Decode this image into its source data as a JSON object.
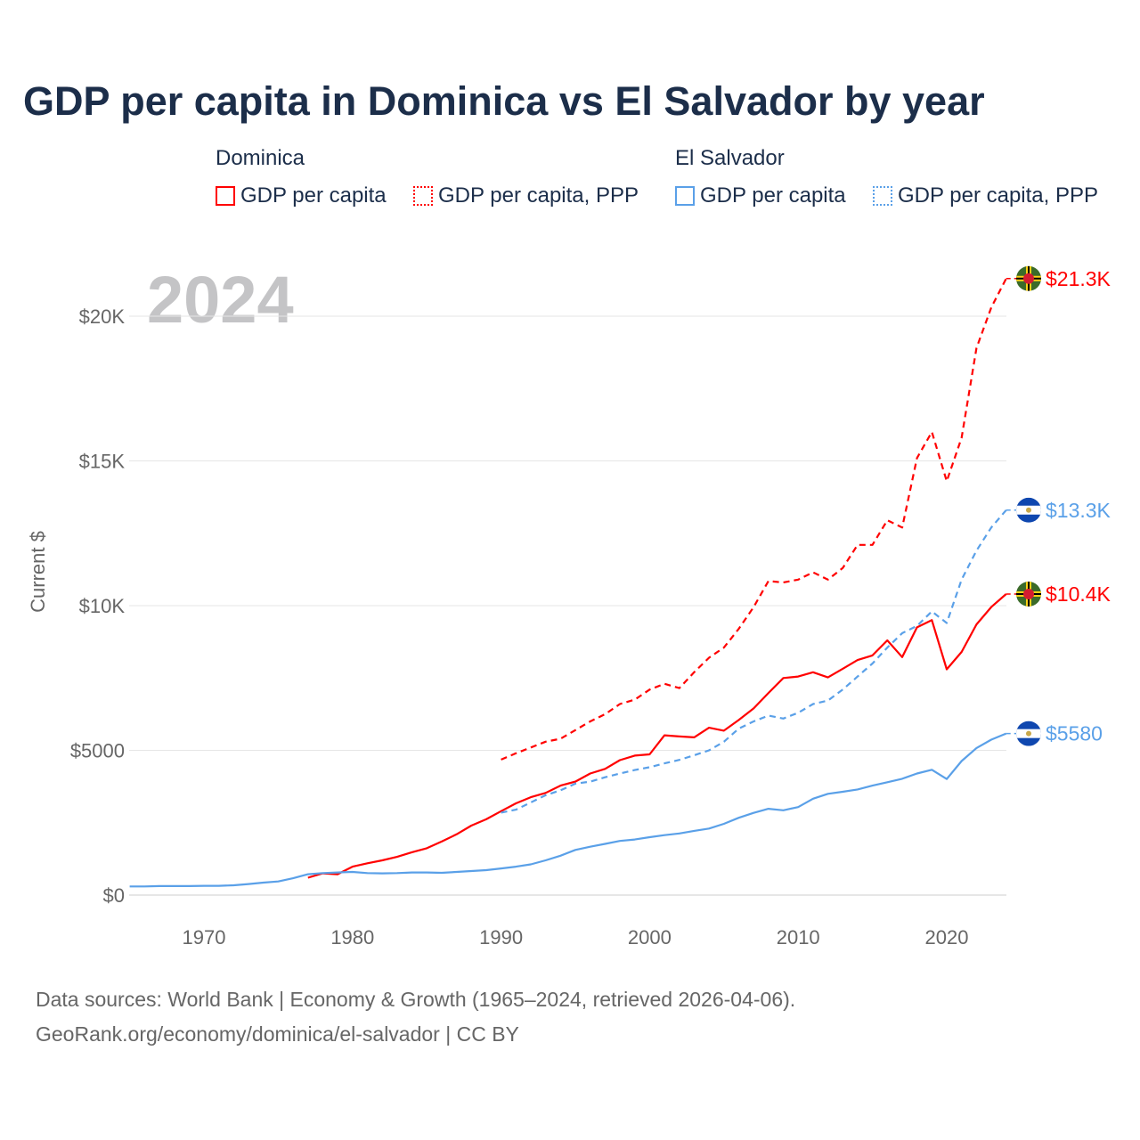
{
  "title": "GDP per capita in Dominica vs El Salvador by year",
  "legend": {
    "groups": [
      {
        "name": "Dominica",
        "items": [
          "GDP per capita",
          "GDP per capita, PPP"
        ],
        "color": "#ff0000"
      },
      {
        "name": "El Salvador",
        "items": [
          "GDP per capita",
          "GDP per capita, PPP"
        ],
        "color": "#5aa0e8"
      }
    ]
  },
  "footer": {
    "line1": "Data sources: World Bank | Economy & Growth (1965–2024, retrieved 2026-04-06).",
    "line2": "GeoRank.org/economy/dominica/el-salvador | CC BY"
  },
  "chart_data": {
    "type": "line",
    "title": "GDP per capita in Dominica vs El Salvador by year",
    "ylabel": "Current $",
    "year_label": "2024",
    "xlim": [
      1965,
      2024
    ],
    "ylim": [
      0,
      22000
    ],
    "xticks": [
      1970,
      1980,
      1990,
      2000,
      2010,
      2020
    ],
    "xtick_labels": [
      "1970",
      "1980",
      "1990",
      "2000",
      "2010",
      "2020"
    ],
    "yticks": [
      0,
      5000,
      10000,
      15000,
      20000
    ],
    "ytick_labels": [
      "$0",
      "$5000",
      "$10K",
      "$15K",
      "$20K"
    ],
    "series": [
      {
        "name": "Dominica GDP per capita",
        "color": "#ff0000",
        "dashed": false,
        "start": 1977,
        "end_label": "$10.4K",
        "flag": "dominica",
        "values": [
          600,
          750,
          720,
          980,
          1100,
          1200,
          1320,
          1480,
          1620,
          1850,
          2100,
          2400,
          2620,
          2900,
          3170,
          3380,
          3530,
          3780,
          3920,
          4200,
          4360,
          4660,
          4820,
          4860,
          5520,
          5480,
          5450,
          5780,
          5680,
          6050,
          6450,
          6980,
          7500,
          7550,
          7700,
          7520,
          7820,
          8120,
          8280,
          8800,
          8220,
          9250,
          9500,
          7800,
          8400,
          9350,
          9950,
          10400
        ]
      },
      {
        "name": "Dominica GDP per capita, PPP",
        "color": "#ff0000",
        "dashed": true,
        "start": 1990,
        "end_label": "$21.3K",
        "flag": "dominica",
        "values": [
          4680,
          4900,
          5100,
          5300,
          5400,
          5700,
          6000,
          6250,
          6600,
          6750,
          7100,
          7300,
          7150,
          7700,
          8200,
          8550,
          9200,
          9950,
          10850,
          10800,
          10900,
          11150,
          10900,
          11300,
          12100,
          12100,
          12950,
          12700,
          15100,
          16000,
          14300,
          15800,
          18900,
          20300,
          21300
        ]
      },
      {
        "name": "El Salvador GDP per capita",
        "color": "#5aa0e8",
        "dashed": false,
        "start": 1965,
        "end_label": "$5580",
        "flag": "el-salvador",
        "values": [
          300,
          300,
          310,
          310,
          310,
          320,
          320,
          340,
          380,
          430,
          470,
          580,
          720,
          760,
          780,
          800,
          760,
          750,
          760,
          780,
          780,
          770,
          800,
          830,
          860,
          920,
          980,
          1060,
          1200,
          1360,
          1560,
          1670,
          1770,
          1870,
          1920,
          2000,
          2070,
          2130,
          2220,
          2300,
          2460,
          2670,
          2840,
          2980,
          2930,
          3040,
          3330,
          3500,
          3570,
          3650,
          3780,
          3900,
          4020,
          4200,
          4330,
          4010,
          4630,
          5080,
          5370,
          5580
        ]
      },
      {
        "name": "El Salvador GDP per capita, PPP",
        "color": "#5aa0e8",
        "dashed": true,
        "start": 1990,
        "end_label": "$13.3K",
        "flag": "el-salvador",
        "values": [
          2850,
          2950,
          3200,
          3450,
          3620,
          3850,
          3920,
          4070,
          4200,
          4320,
          4420,
          4550,
          4670,
          4830,
          5000,
          5300,
          5750,
          6000,
          6200,
          6100,
          6300,
          6600,
          6720,
          7100,
          7550,
          8000,
          8550,
          9050,
          9300,
          9800,
          9400,
          10900,
          11900,
          12700,
          13300
        ]
      }
    ]
  }
}
